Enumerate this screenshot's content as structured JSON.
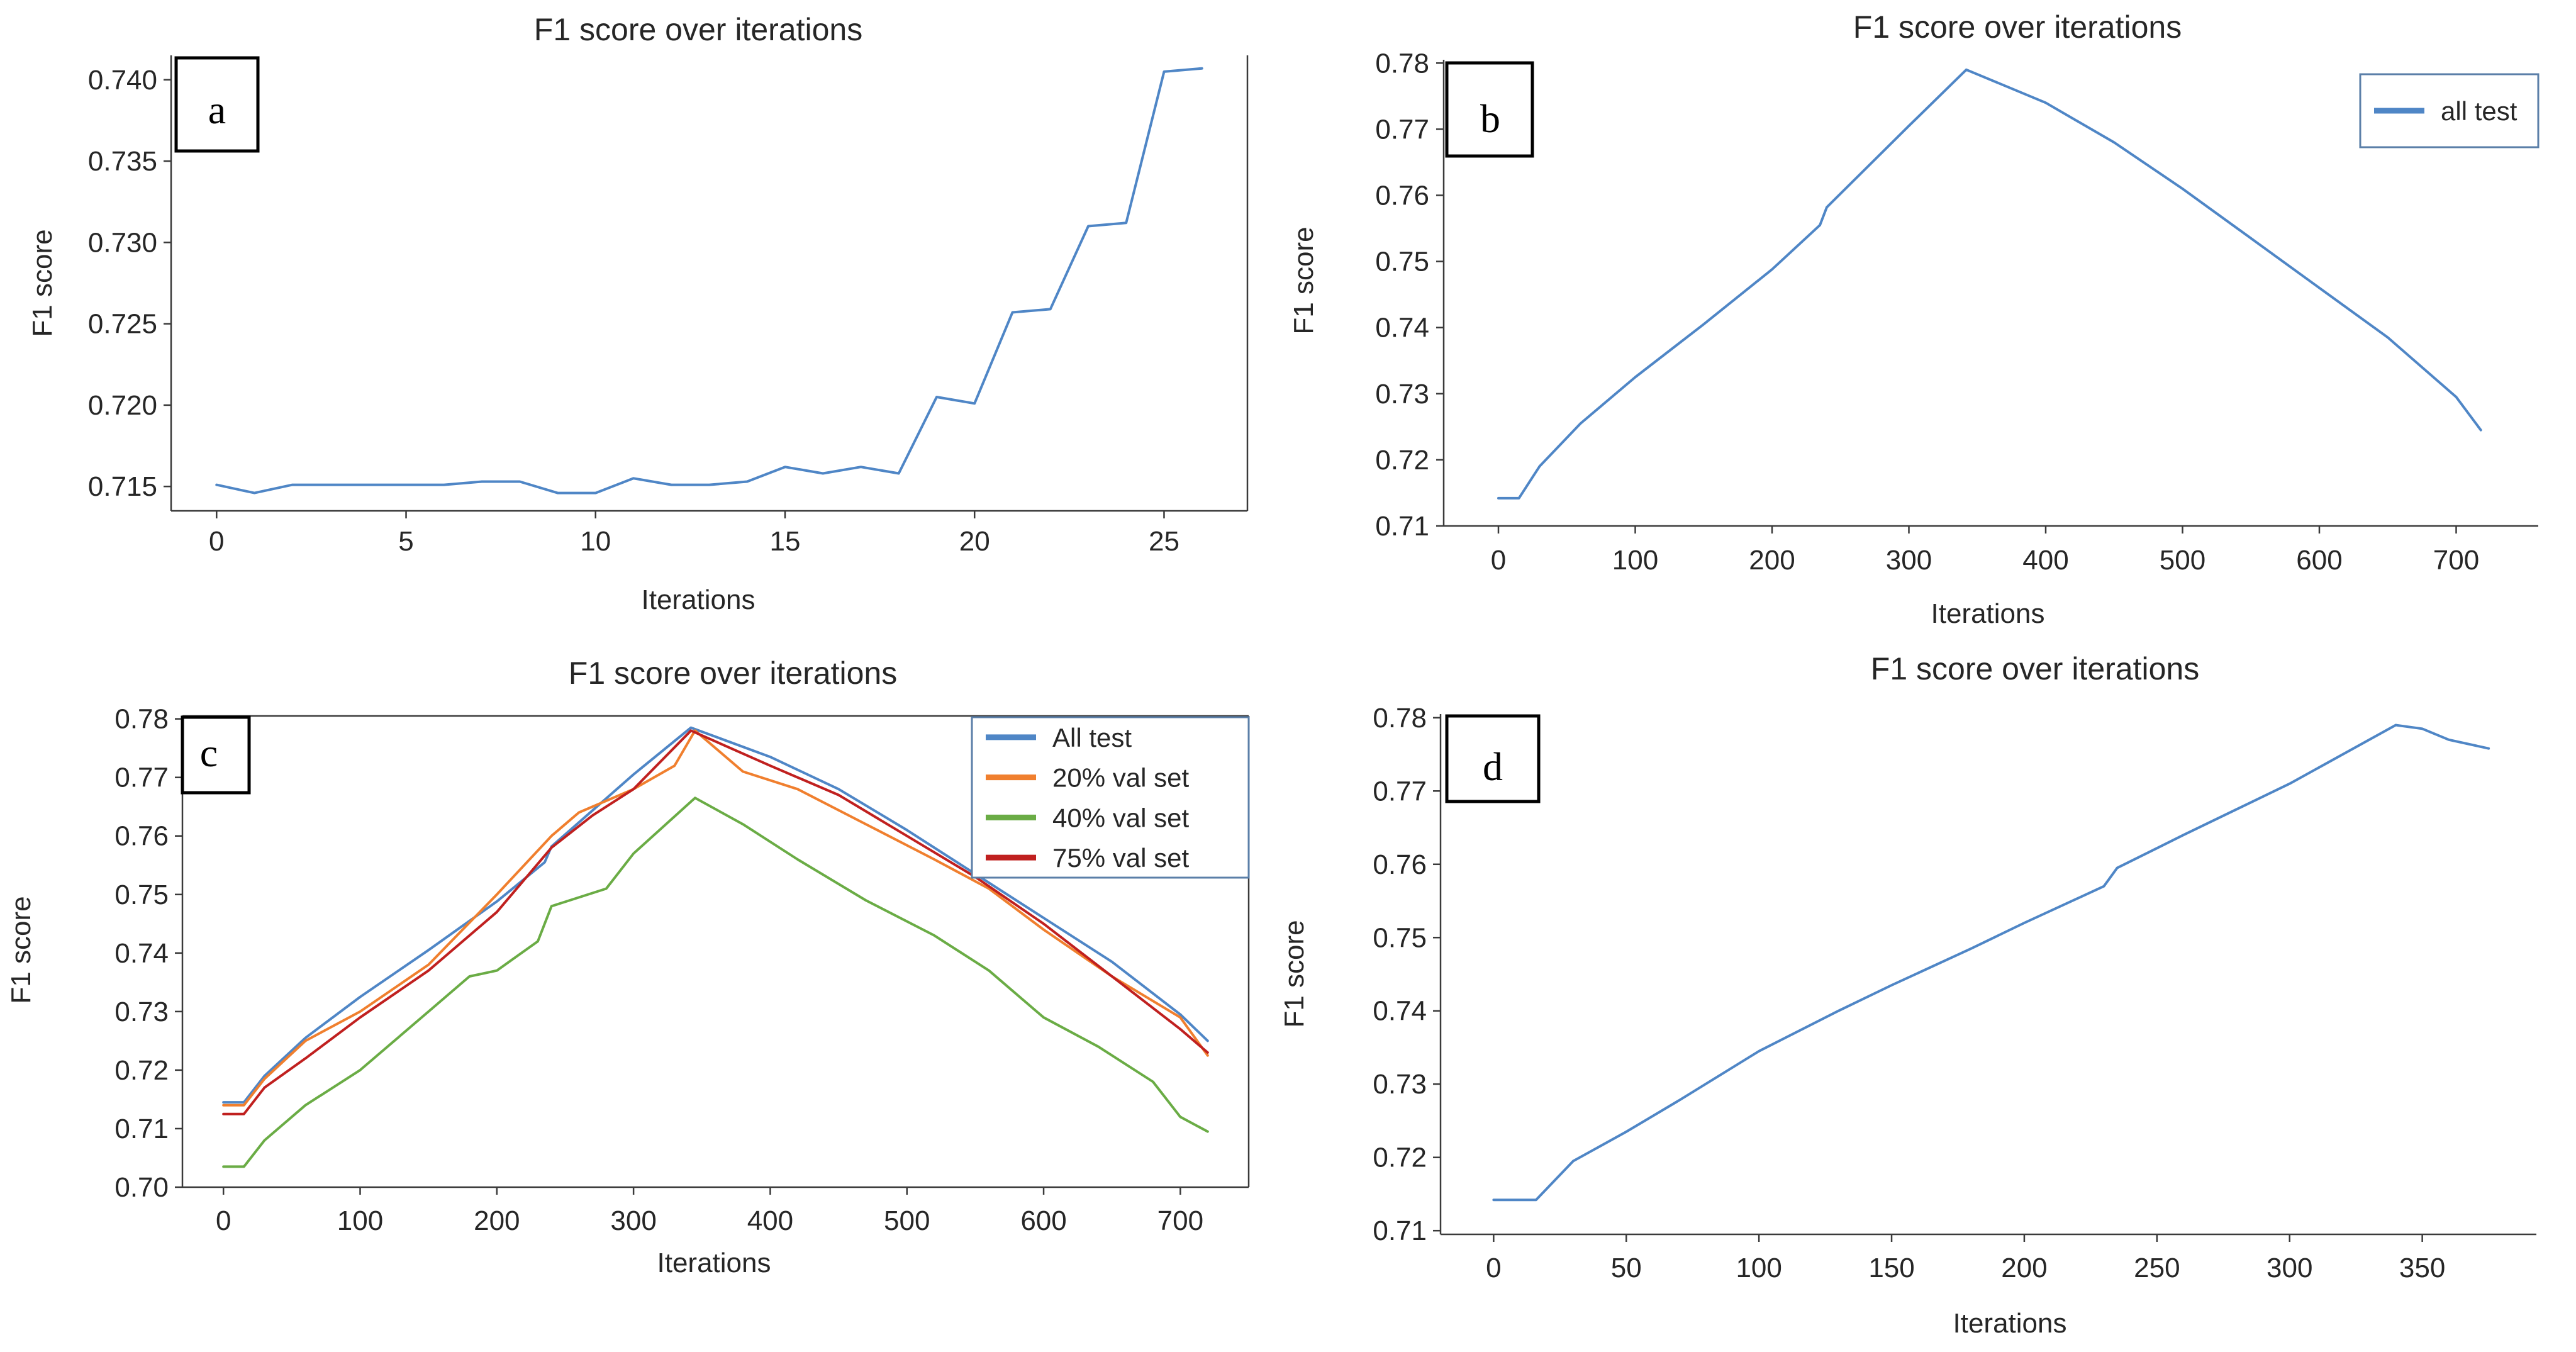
{
  "colors": {
    "all_test": "#4f86c6",
    "val20": "#f07f2e",
    "val40": "#6aac45",
    "val75": "#c0201f",
    "axis": "#3a3a3a"
  },
  "chart_data": [
    {
      "id": "a",
      "type": "line",
      "panel_letter": "a",
      "title": "F1 score over iterations",
      "xlabel": "Iterations",
      "ylabel": "F1 score",
      "xlim": [
        -1.2,
        27.2
      ],
      "ylim": [
        0.7135,
        0.7415
      ],
      "xticks": [
        0,
        5,
        10,
        15,
        20,
        25
      ],
      "xtick_labels": [
        "0",
        "5",
        "10",
        "15",
        "20",
        "25"
      ],
      "yticks": [
        0.715,
        0.72,
        0.725,
        0.73,
        0.735,
        0.74
      ],
      "ytick_labels": [
        "0.715",
        "0.720",
        "0.725",
        "0.730",
        "0.735",
        "0.740"
      ],
      "grid": false,
      "legend": null,
      "series": [
        {
          "name": "F1",
          "color_key": "all_test",
          "x": [
            0,
            1,
            2,
            3,
            4,
            5,
            6,
            7,
            8,
            9,
            10,
            11,
            12,
            13,
            14,
            15,
            16,
            17,
            18,
            19,
            20,
            21,
            22,
            23,
            24,
            25,
            26
          ],
          "y": [
            0.7151,
            0.7146,
            0.7151,
            0.7151,
            0.7151,
            0.7151,
            0.7151,
            0.7153,
            0.7153,
            0.7146,
            0.7146,
            0.7155,
            0.7151,
            0.7151,
            0.7153,
            0.7162,
            0.7158,
            0.7162,
            0.7158,
            0.7205,
            0.7201,
            0.7257,
            0.7259,
            0.731,
            0.7312,
            0.7405,
            0.7407
          ]
        }
      ]
    },
    {
      "id": "b",
      "type": "line",
      "panel_letter": "b",
      "title": "F1 score over iterations",
      "xlabel": "Iterations",
      "ylabel": "F1 score",
      "xlim": [
        -40,
        760
      ],
      "ylim": [
        0.71,
        0.7805
      ],
      "xticks": [
        0,
        100,
        200,
        300,
        400,
        500,
        600,
        700
      ],
      "xtick_labels": [
        "0",
        "100",
        "200",
        "300",
        "400",
        "500",
        "600",
        "700"
      ],
      "yticks": [
        0.71,
        0.72,
        0.73,
        0.74,
        0.75,
        0.76,
        0.77,
        0.78
      ],
      "ytick_labels": [
        "0.71",
        "0.72",
        "0.73",
        "0.74",
        "0.75",
        "0.76",
        "0.77",
        "0.78"
      ],
      "grid": false,
      "legend": {
        "position": "top-right",
        "entries": [
          "all test"
        ]
      },
      "series": [
        {
          "name": "all test",
          "color_key": "all_test",
          "x": [
            0,
            15,
            30,
            60,
            100,
            150,
            200,
            235,
            240,
            300,
            342,
            400,
            450,
            500,
            550,
            600,
            650,
            700,
            718
          ],
          "y": [
            0.7142,
            0.7142,
            0.719,
            0.7255,
            0.7325,
            0.7405,
            0.7488,
            0.7555,
            0.7582,
            0.7705,
            0.779,
            0.774,
            0.768,
            0.761,
            0.7535,
            0.746,
            0.7385,
            0.7295,
            0.7245
          ]
        }
      ]
    },
    {
      "id": "c",
      "type": "line",
      "panel_letter": "c",
      "title": "F1 score over iterations",
      "xlabel": "Iterations",
      "ylabel": "F1 score",
      "xlim": [
        -30,
        750
      ],
      "ylim": [
        0.7,
        0.7805
      ],
      "xticks": [
        0,
        100,
        200,
        300,
        400,
        500,
        600,
        700
      ],
      "xtick_labels": [
        "0",
        "100",
        "200",
        "300",
        "400",
        "500",
        "600",
        "700"
      ],
      "yticks": [
        0.7,
        0.71,
        0.72,
        0.73,
        0.74,
        0.75,
        0.76,
        0.77,
        0.78
      ],
      "ytick_labels": [
        "0.70",
        "0.71",
        "0.72",
        "0.73",
        "0.74",
        "0.75",
        "0.76",
        "0.77",
        "0.78"
      ],
      "grid": false,
      "legend": {
        "position": "top-right",
        "entries": [
          "All test",
          "20% val set",
          "40% val set",
          "75% val set"
        ]
      },
      "series": [
        {
          "name": "All test",
          "color_key": "all_test",
          "x": [
            0,
            15,
            30,
            60,
            100,
            150,
            200,
            235,
            240,
            300,
            342,
            400,
            450,
            500,
            550,
            600,
            650,
            700,
            720
          ],
          "y": [
            0.7145,
            0.7145,
            0.719,
            0.7255,
            0.7325,
            0.7405,
            0.7488,
            0.7555,
            0.7582,
            0.7705,
            0.7785,
            0.7735,
            0.768,
            0.761,
            0.7535,
            0.746,
            0.7385,
            0.7295,
            0.725
          ]
        },
        {
          "name": "20% val set",
          "color_key": "val20",
          "x": [
            0,
            15,
            30,
            60,
            100,
            150,
            200,
            240,
            260,
            300,
            330,
            345,
            380,
            420,
            470,
            520,
            560,
            600,
            650,
            700,
            720
          ],
          "y": [
            0.714,
            0.714,
            0.7185,
            0.725,
            0.73,
            0.738,
            0.75,
            0.76,
            0.764,
            0.768,
            0.772,
            0.778,
            0.771,
            0.768,
            0.762,
            0.756,
            0.751,
            0.744,
            0.736,
            0.729,
            0.7225
          ]
        },
        {
          "name": "40% val set",
          "color_key": "val40",
          "x": [
            0,
            15,
            30,
            60,
            100,
            150,
            180,
            200,
            230,
            240,
            280,
            300,
            345,
            380,
            420,
            470,
            520,
            560,
            600,
            640,
            680,
            700,
            720
          ],
          "y": [
            0.7035,
            0.7035,
            0.708,
            0.714,
            0.72,
            0.73,
            0.736,
            0.737,
            0.742,
            0.748,
            0.751,
            0.757,
            0.7665,
            0.762,
            0.756,
            0.749,
            0.743,
            0.737,
            0.729,
            0.724,
            0.718,
            0.712,
            0.7095
          ]
        },
        {
          "name": "75% val set",
          "color_key": "val75",
          "x": [
            0,
            15,
            30,
            60,
            100,
            150,
            200,
            240,
            270,
            300,
            342,
            400,
            450,
            500,
            550,
            600,
            650,
            700,
            720
          ],
          "y": [
            0.7125,
            0.7125,
            0.717,
            0.722,
            0.729,
            0.737,
            0.747,
            0.758,
            0.7635,
            0.768,
            0.778,
            0.772,
            0.767,
            0.76,
            0.753,
            0.745,
            0.736,
            0.727,
            0.723
          ]
        }
      ]
    },
    {
      "id": "d",
      "type": "line",
      "panel_letter": "d",
      "title": "F1 score over iterations",
      "xlabel": "Iterations",
      "ylabel": "F1 score",
      "xlim": [
        -20,
        393
      ],
      "ylim": [
        0.7095,
        0.7805
      ],
      "xticks": [
        0,
        50,
        100,
        150,
        200,
        250,
        300,
        350
      ],
      "xtick_labels": [
        "0",
        "50",
        "100",
        "150",
        "200",
        "250",
        "300",
        "350"
      ],
      "yticks": [
        0.71,
        0.72,
        0.73,
        0.74,
        0.75,
        0.76,
        0.77,
        0.78
      ],
      "ytick_labels": [
        "0.71",
        "0.72",
        "0.73",
        "0.74",
        "0.75",
        "0.76",
        "0.77",
        "0.78"
      ],
      "grid": false,
      "legend": null,
      "series": [
        {
          "name": "F1",
          "color_key": "all_test",
          "x": [
            0,
            10,
            16,
            30,
            50,
            70,
            100,
            130,
            150,
            180,
            200,
            230,
            235,
            260,
            300,
            340,
            350,
            360,
            375
          ],
          "y": [
            0.7142,
            0.7142,
            0.7142,
            0.7195,
            0.7235,
            0.7278,
            0.7345,
            0.74,
            0.7435,
            0.7485,
            0.752,
            0.757,
            0.7595,
            0.764,
            0.771,
            0.779,
            0.7785,
            0.777,
            0.7758
          ]
        }
      ]
    }
  ]
}
